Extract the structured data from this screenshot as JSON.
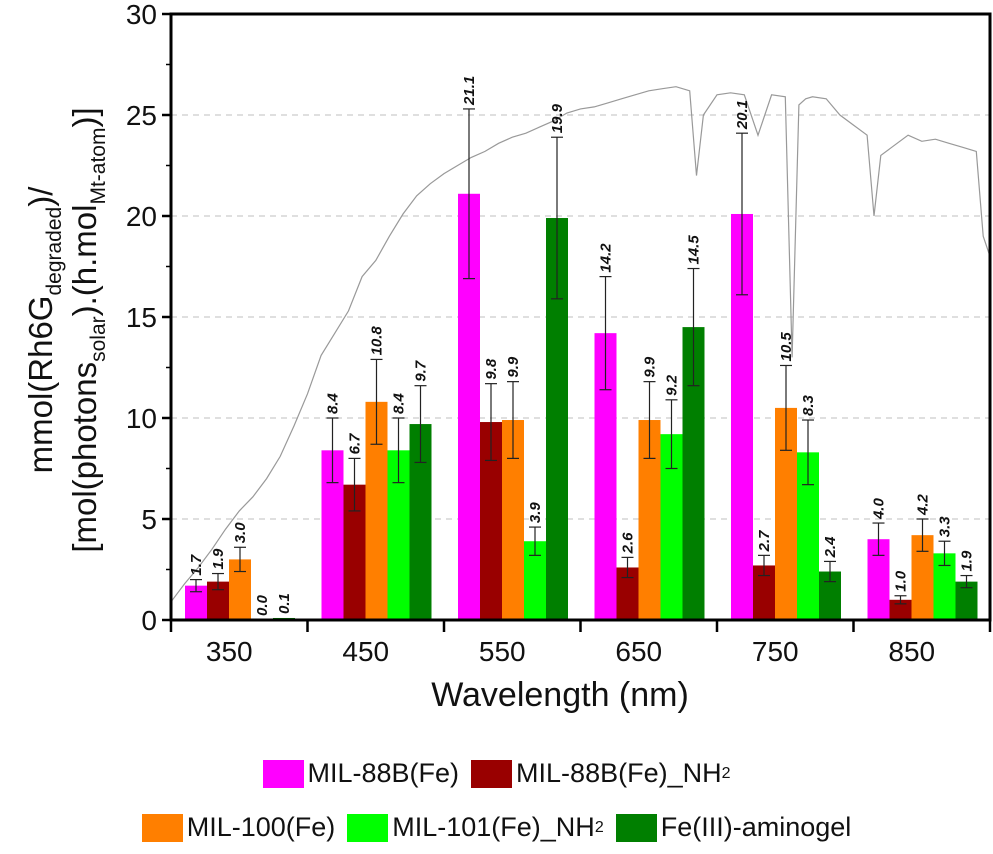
{
  "chart_data": {
    "type": "bar",
    "title": "",
    "xlabel": "Wavelength (nm)",
    "ylabel_line1": {
      "main": "mmol(Rh6G",
      "sub": "degraded",
      "end": ")/"
    },
    "ylabel_line2": {
      "a": "[mol(photons",
      "sub1": "solar",
      "b": ").(h.mol",
      "sub2": "Mt-atom",
      "c": ")]"
    },
    "categories": [
      "350",
      "450",
      "550",
      "650",
      "750",
      "850"
    ],
    "ylim": [
      0,
      30
    ],
    "yticks": [
      "0",
      "5",
      "10",
      "15",
      "20",
      "25",
      "30"
    ],
    "grid": "horizontal-dashed",
    "series": [
      {
        "name": "MIL-88B(Fe)",
        "color": "#ff00ff",
        "values": [
          1.7,
          8.4,
          21.1,
          14.2,
          20.1,
          4.0
        ],
        "labels": [
          "1.7",
          "8.4",
          "21.1",
          "14.2",
          "20.1",
          "4.0"
        ],
        "errors": [
          0.3,
          1.6,
          4.2,
          2.8,
          4.0,
          0.8
        ]
      },
      {
        "name": "MIL-88B(Fe)_NH",
        "name_sub": "2",
        "color": "#990000",
        "values": [
          1.9,
          6.7,
          9.8,
          2.6,
          2.7,
          1.0
        ],
        "labels": [
          "1.9",
          "6.7",
          "9.8",
          "2.6",
          "2.7",
          "1.0"
        ],
        "errors": [
          0.4,
          1.3,
          1.9,
          0.5,
          0.5,
          0.2
        ]
      },
      {
        "name": "MIL-100(Fe)",
        "color": "#ff7f00",
        "values": [
          3.0,
          10.8,
          9.9,
          9.9,
          10.5,
          4.2
        ],
        "labels": [
          "3.0",
          "10.8",
          "9.9",
          "9.9",
          "10.5",
          "4.2"
        ],
        "errors": [
          0.6,
          2.1,
          1.9,
          1.9,
          2.1,
          0.8
        ]
      },
      {
        "name": "MIL-101(Fe)_NH",
        "name_sub": "2",
        "color": "#00ff00",
        "values": [
          0.0,
          8.4,
          3.9,
          9.2,
          8.3,
          3.3
        ],
        "labels": [
          "0.0",
          "8.4",
          "3.9",
          "9.2",
          "8.3",
          "3.3"
        ],
        "errors": [
          0.0,
          1.6,
          0.7,
          1.7,
          1.6,
          0.6
        ]
      },
      {
        "name": "Fe(III)-aminogel",
        "color": "#007f00",
        "values": [
          0.1,
          9.7,
          19.9,
          14.5,
          2.4,
          1.9
        ],
        "labels": [
          "0.1",
          "9.7",
          "19.9",
          "14.5",
          "2.4",
          "1.9"
        ],
        "errors": [
          0.0,
          1.9,
          4.0,
          2.9,
          0.5,
          0.3
        ]
      }
    ],
    "background_curve": {
      "name": "solar spectrum",
      "color": "#999999",
      "x": [
        300,
        310,
        320,
        330,
        340,
        350,
        360,
        370,
        380,
        390,
        400,
        410,
        420,
        430,
        440,
        450,
        460,
        470,
        480,
        490,
        500,
        510,
        520,
        530,
        540,
        550,
        560,
        570,
        580,
        590,
        600,
        610,
        620,
        630,
        640,
        650,
        660,
        670,
        680,
        685,
        690,
        700,
        710,
        720,
        730,
        740,
        750,
        755,
        760,
        765,
        770,
        780,
        790,
        800,
        810,
        815,
        820,
        830,
        840,
        850,
        860,
        870,
        880,
        890,
        895,
        900
      ],
      "y": [
        0.9,
        1.8,
        2.6,
        3.5,
        4.5,
        5.4,
        6.1,
        7.0,
        8.1,
        9.6,
        11.2,
        13.1,
        14.2,
        15.3,
        17.0,
        17.8,
        19.0,
        20.1,
        21.0,
        21.6,
        22.1,
        22.5,
        22.9,
        23.2,
        23.6,
        23.9,
        24.1,
        24.4,
        24.7,
        25.1,
        25.3,
        25.4,
        25.6,
        25.8,
        26.0,
        26.2,
        26.3,
        26.4,
        26.2,
        22.0,
        25.0,
        26.0,
        26.1,
        26.0,
        24.0,
        26.0,
        25.9,
        13.0,
        25.5,
        25.8,
        25.9,
        25.8,
        25.0,
        24.5,
        24.0,
        20.0,
        23.0,
        23.5,
        24.0,
        23.7,
        23.8,
        23.6,
        23.4,
        23.2,
        19.0,
        18.0
      ]
    }
  }
}
